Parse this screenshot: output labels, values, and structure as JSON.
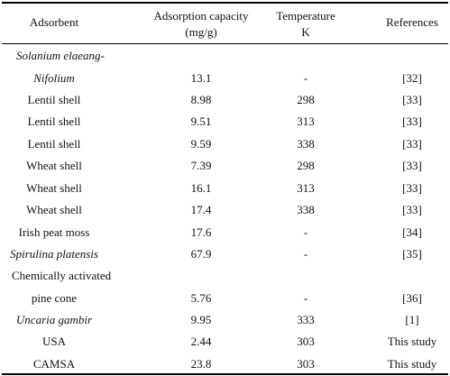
{
  "headers": {
    "adsorbent": "Adsorbent",
    "capacity_line1": "Adsorption capacity",
    "capacity_line2": "(mg/g)",
    "temp_line1": "Temperature",
    "temp_line2": "K",
    "references": "References"
  },
  "rows": [
    {
      "adsorbent_line1": "Solanium elaeang-",
      "adsorbent_line2": "Nifolium",
      "capacity": "13.1",
      "temperature": "-",
      "reference": "[32]"
    },
    {
      "adsorbent": "Lentil shell",
      "capacity": "8.98",
      "temperature": "298",
      "reference": "[33]"
    },
    {
      "adsorbent": "Lentil shell",
      "capacity": "9.51",
      "temperature": "313",
      "reference": "[33]"
    },
    {
      "adsorbent": "Lentil shell",
      "capacity": "9.59",
      "temperature": "338",
      "reference": "[33]"
    },
    {
      "adsorbent": "Wheat shell",
      "capacity": "7.39",
      "temperature": "298",
      "reference": "[33]"
    },
    {
      "adsorbent": "Wheat shell",
      "capacity": "16.1",
      "temperature": "313",
      "reference": "[33]"
    },
    {
      "adsorbent": "Wheat shell",
      "capacity": "17.4",
      "temperature": "338",
      "reference": "[33]"
    },
    {
      "adsorbent": "Irish peat moss",
      "capacity": "17.6",
      "temperature": "-",
      "reference": "[34]"
    },
    {
      "adsorbent": "Spirulina platensis",
      "capacity": "67.9",
      "temperature": "-",
      "reference": "[35]"
    },
    {
      "adsorbent_line1": "Chemically activated",
      "adsorbent_line2": "pine cone",
      "capacity": "5.76",
      "temperature": "-",
      "reference": "[36]"
    },
    {
      "adsorbent": "Uncaria gambir",
      "capacity": "9.95",
      "temperature": "333",
      "reference": "[1]"
    },
    {
      "adsorbent": "USA",
      "capacity": "2.44",
      "temperature": "303",
      "reference": "This study"
    },
    {
      "adsorbent": "CAMSA",
      "capacity": "23.8",
      "temperature": "303",
      "reference": "This study"
    }
  ]
}
